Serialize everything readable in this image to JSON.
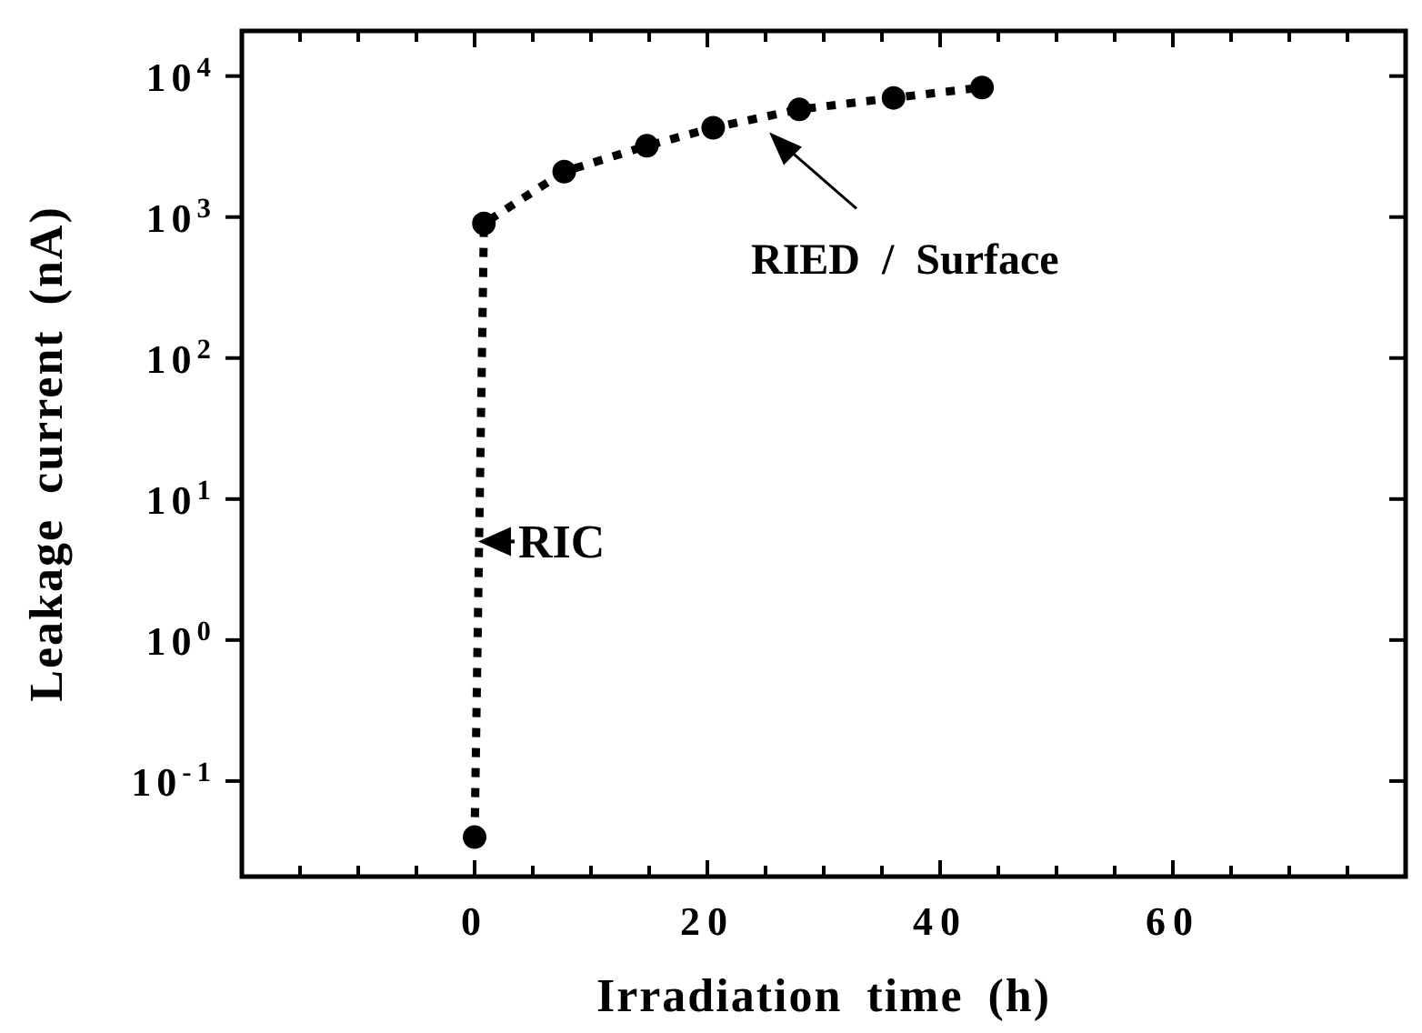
{
  "chart_data": {
    "type": "line",
    "xlabel": "Irradiation time (h)",
    "ylabel": "Leakage current (nA)",
    "x": [
      0,
      0.8,
      7.7,
      14.8,
      20.5,
      27.9,
      36,
      43.6
    ],
    "series": [
      {
        "color": "#000000",
        "values": [
          0.04,
          900,
          2100,
          3200,
          4300,
          5800,
          7000,
          8300
        ]
      }
    ],
    "xlim": [
      -20,
      80
    ],
    "xticks": [
      {
        "value": -15,
        "label": null
      },
      {
        "value": -10,
        "label": null
      },
      {
        "value": -5,
        "label": null
      },
      0,
      {
        "value": 5,
        "label": null
      },
      {
        "value": 10,
        "label": null
      },
      {
        "value": 15,
        "label": null
      },
      20,
      {
        "value": 25,
        "label": null
      },
      {
        "value": 30,
        "label": null
      },
      {
        "value": 35,
        "label": null
      },
      40,
      {
        "value": 45,
        "label": null
      },
      {
        "value": 50,
        "label": null
      },
      {
        "value": 55,
        "label": null
      },
      60,
      {
        "value": 65,
        "label": null
      },
      {
        "value": 70,
        "label": null
      },
      {
        "value": 75,
        "label": null
      }
    ],
    "ylim": [
      0.021,
      20900
    ],
    "yticks": [
      {
        "value": 0.1,
        "label": "10$^{-1}$"
      },
      {
        "value": 1,
        "label": "10$^{0}$"
      },
      {
        "value": 10,
        "label": "10$^{1}$"
      },
      {
        "value": 100,
        "label": "10$^{2}$"
      },
      {
        "value": 1000,
        "label": "10$^{3}$"
      },
      {
        "value": 10000,
        "label": "10$^{4}$"
      }
    ],
    "log": "y",
    "marker": "circle",
    "line_style": "dotted",
    "annotations": [
      {
        "text": "RIC",
        "x": 0,
        "y": 5
      },
      {
        "text": "RIED / Surface",
        "x": 25,
        "y": 4500
      }
    ]
  }
}
